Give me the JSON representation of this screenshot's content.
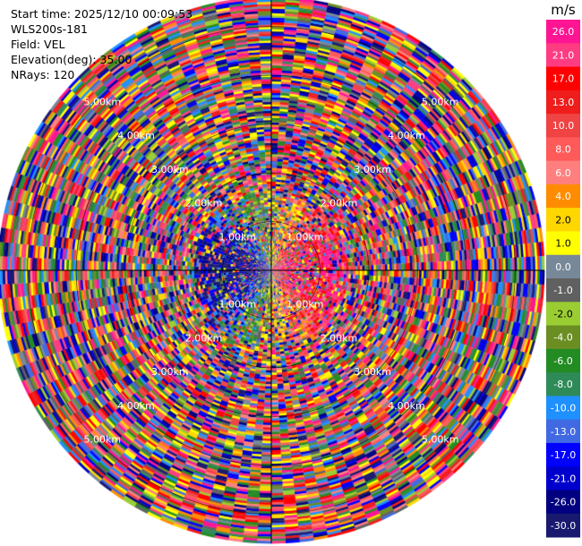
{
  "header": {
    "start_time": "Start time: 2025/12/10 00:09:53",
    "site": "WLS200s-181",
    "field": "Field: VEL",
    "elevation": "Elevation(deg): 35.00",
    "nrays": "NRays: 120"
  },
  "chart_data": {
    "type": "polar-ppi",
    "field": "VEL",
    "nrays": 120,
    "elevation_deg": 35.0,
    "max_range_km": 5.6,
    "range_rings_km": [
      1,
      2,
      3,
      4,
      5
    ],
    "range_ring_labels": [
      "1.00km",
      "2.00km",
      "3.00km",
      "4.00km",
      "5.00km"
    ],
    "colorbar": {
      "unit": "m/s",
      "ticks": [
        "26.0",
        "21.0",
        "17.0",
        "13.0",
        "10.0",
        "8.0",
        "6.0",
        "4.0",
        "2.0",
        "1.0",
        "0.0",
        "-1.0",
        "-2.0",
        "-4.0",
        "-6.0",
        "-8.0",
        "-10.0",
        "-13.0",
        "-17.0",
        "-21.0",
        "-26.0",
        "-30.0"
      ],
      "colors": [
        "#ff1493",
        "#ff3c82",
        "#ff0000",
        "#f01d1d",
        "#f04343",
        "#ff5a5a",
        "#ff7f7f",
        "#ff8c00",
        "#ffd700",
        "#ffff00",
        "#778899",
        "#606060",
        "#9acd32",
        "#6b8e23",
        "#228b22",
        "#2e8b57",
        "#1e90ff",
        "#4169e1",
        "#0000ff",
        "#0000cd",
        "#000080",
        "#191970"
      ]
    }
  }
}
